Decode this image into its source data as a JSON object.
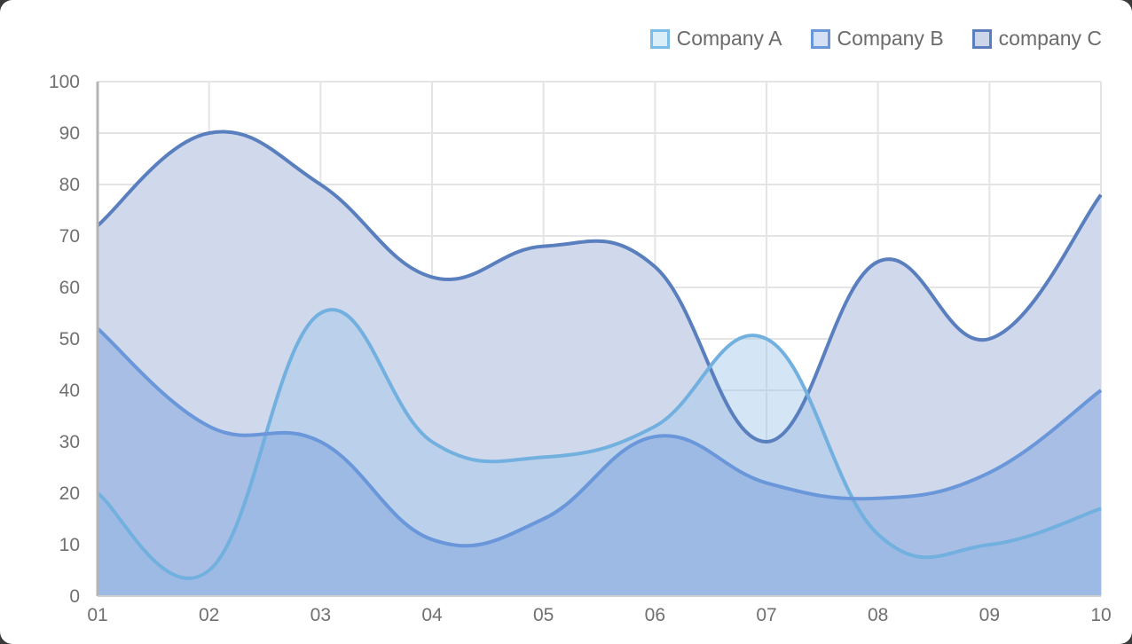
{
  "chart_data": {
    "type": "area",
    "title": "",
    "xlabel": "",
    "ylabel": "",
    "categories": [
      "01",
      "02",
      "03",
      "04",
      "05",
      "06",
      "07",
      "08",
      "09",
      "10"
    ],
    "ylim": [
      0,
      100
    ],
    "yticks": [
      0,
      10,
      20,
      30,
      40,
      50,
      60,
      70,
      80,
      90,
      100
    ],
    "grid": true,
    "legend_position": "top-right",
    "smooth": true,
    "series": [
      {
        "name": "Company A",
        "values": [
          20,
          5,
          55,
          30,
          27,
          33,
          50,
          12,
          10,
          17
        ],
        "stroke": "#72b0df",
        "fill": "#d6ecf7"
      },
      {
        "name": "Company B",
        "values": [
          52,
          33,
          30,
          11,
          15,
          31,
          22,
          19,
          24,
          40
        ],
        "stroke": "#6a96da",
        "fill": "#cfdcf3"
      },
      {
        "name": "company C",
        "values": [
          72,
          90,
          80,
          62,
          68,
          64,
          30,
          65,
          50,
          78
        ],
        "stroke": "#5a7fbf",
        "fill": "#cdd5e8"
      }
    ]
  },
  "legend": [
    {
      "label": "Company A"
    },
    {
      "label": "Company B"
    },
    {
      "label": "company C"
    }
  ]
}
